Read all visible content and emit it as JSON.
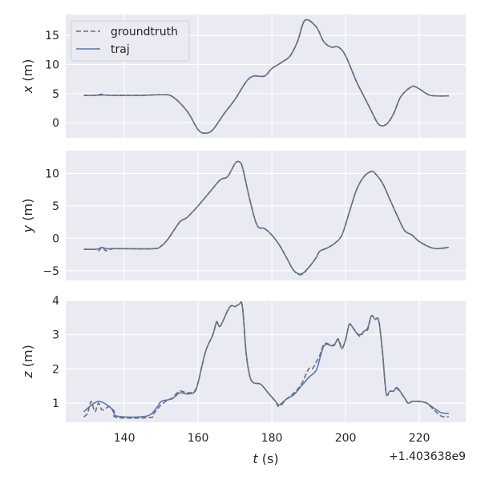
{
  "chart_data": [
    {
      "type": "line",
      "ylabel": "x (m)",
      "ylim": [
        -2.6,
        18.6
      ],
      "xlim": [
        124.1,
        232.6
      ],
      "yticks": [
        0,
        5,
        10,
        15
      ],
      "grid": true,
      "legend": {
        "placement": "top-left",
        "entries": [
          "groundtruth",
          "traj"
        ]
      },
      "series": [
        {
          "name": "groundtruth",
          "style": "dashed",
          "color": "#6e6e6e",
          "t": [
            129,
            132,
            134,
            136,
            140,
            145,
            150,
            153,
            157,
            160,
            162,
            164,
            167,
            170,
            173,
            175,
            178,
            180,
            183,
            185,
            187,
            189,
            192,
            194,
            196,
            198,
            200,
            203,
            205,
            207,
            209,
            211,
            213,
            215,
            218,
            220,
            223,
            228
          ],
          "values": [
            4.7,
            4.7,
            4.9,
            4.7,
            4.7,
            4.7,
            4.8,
            4.5,
            2,
            -1.2,
            -1.8,
            -1.2,
            1.5,
            4,
            7,
            8,
            8,
            9.3,
            10.5,
            11.5,
            14,
            17.6,
            16.5,
            14,
            13,
            13,
            11.5,
            7,
            4.5,
            2,
            -0.3,
            -0.3,
            1.5,
            4.5,
            6.2,
            5.8,
            4.7,
            4.6
          ]
        },
        {
          "name": "traj",
          "style": "solid",
          "color": "#5875b3",
          "t": [
            129,
            132,
            134,
            136,
            140,
            145,
            150,
            153,
            157,
            160,
            162,
            164,
            167,
            170,
            173,
            175,
            178,
            180,
            183,
            185,
            187,
            189,
            192,
            194,
            196,
            198,
            200,
            203,
            205,
            207,
            209,
            211,
            213,
            215,
            218,
            220,
            223,
            228
          ],
          "values": [
            4.7,
            4.7,
            4.75,
            4.7,
            4.7,
            4.7,
            4.8,
            4.5,
            2,
            -1.2,
            -1.8,
            -1.2,
            1.5,
            4,
            7,
            8,
            8,
            9.3,
            10.5,
            11.5,
            14,
            17.6,
            16.5,
            14,
            13,
            13,
            11.5,
            7,
            4.5,
            2,
            -0.3,
            -0.3,
            1.5,
            4.5,
            6.2,
            5.8,
            4.7,
            4.6
          ]
        }
      ]
    },
    {
      "type": "line",
      "ylabel": "y (m)",
      "ylim": [
        -6.5,
        13.5
      ],
      "xlim": [
        124.1,
        232.6
      ],
      "yticks": [
        -5,
        0,
        5,
        10
      ],
      "grid": true,
      "series": [
        {
          "name": "groundtruth",
          "style": "dashed",
          "color": "#6e6e6e",
          "t": [
            129,
            132,
            133,
            134,
            135,
            137,
            140,
            148,
            150,
            152,
            155,
            157,
            160,
            163,
            166,
            168,
            170,
            171,
            172,
            174,
            176,
            178,
            180,
            182,
            184,
            186,
            188,
            190,
            192,
            193,
            195,
            197,
            199,
            201,
            203,
            205,
            207,
            208,
            210,
            212,
            214,
            216,
            218,
            220,
            223,
            225,
            228
          ],
          "values": [
            -1.7,
            -1.7,
            -1.9,
            -1.4,
            -1.9,
            -1.6,
            -1.6,
            -1.6,
            -1.2,
            0,
            2.5,
            3.2,
            5,
            7,
            9,
            9.5,
            11.5,
            11.8,
            11,
            6,
            2,
            1.5,
            0.5,
            -1,
            -3,
            -5,
            -5.6,
            -4.5,
            -3,
            -2,
            -1.5,
            -0.8,
            0.5,
            4,
            7.5,
            9.5,
            10.3,
            10,
            8.5,
            6,
            3.5,
            1.2,
            0.5,
            -0.5,
            -1.4,
            -1.6,
            -1.4
          ]
        },
        {
          "name": "traj",
          "style": "solid",
          "color": "#5875b3",
          "t": [
            129,
            132,
            133,
            134,
            135,
            137,
            140,
            148,
            150,
            152,
            155,
            157,
            160,
            163,
            166,
            168,
            170,
            171,
            172,
            174,
            176,
            178,
            180,
            182,
            184,
            186,
            188,
            190,
            192,
            193,
            195,
            197,
            199,
            201,
            203,
            205,
            207,
            208,
            210,
            212,
            214,
            216,
            218,
            220,
            223,
            225,
            228
          ],
          "values": [
            -1.7,
            -1.7,
            -1.6,
            -1.4,
            -1.6,
            -1.6,
            -1.6,
            -1.6,
            -1.2,
            0,
            2.5,
            3.2,
            5,
            7,
            9,
            9.5,
            11.5,
            11.8,
            11,
            6,
            2,
            1.5,
            0.5,
            -1,
            -3,
            -5,
            -5.5,
            -4.5,
            -3,
            -2,
            -1.5,
            -0.8,
            0.5,
            4,
            7.5,
            9.5,
            10.3,
            10,
            8.5,
            6,
            3.5,
            1.2,
            0.5,
            -0.5,
            -1.4,
            -1.6,
            -1.4
          ]
        }
      ]
    },
    {
      "type": "line",
      "ylabel": "z (m)",
      "xlabel": "t (s)",
      "offset_text": "+1.403638e9",
      "ylim": [
        0.44,
        4.0
      ],
      "xlim": [
        124.1,
        232.6
      ],
      "yticks": [
        1,
        2,
        3,
        4
      ],
      "xticks": [
        140,
        160,
        180,
        200,
        220
      ],
      "grid": true,
      "series": [
        {
          "name": "groundtruth",
          "style": "dashed",
          "color": "#6e6e6e",
          "t": [
            129,
            130,
            131,
            132,
            133,
            134,
            136,
            137,
            138,
            147,
            148,
            150,
            152,
            153,
            155,
            157,
            159,
            160,
            162,
            164,
            165,
            166,
            168,
            169,
            170,
            171,
            172,
            173,
            174,
            175,
            177,
            179,
            181,
            182,
            184,
            186,
            188,
            190,
            191,
            192,
            193,
            194,
            195,
            196,
            197,
            198,
            199,
            200,
            201,
            202,
            203,
            204,
            205,
            206,
            207,
            208,
            209,
            210,
            211,
            212,
            213,
            214,
            216,
            217,
            218,
            220,
            222,
            224,
            226,
            228
          ],
          "values": [
            0.6,
            0.7,
            1.05,
            0.75,
            1.0,
            0.8,
            0.9,
            0.75,
            0.58,
            0.58,
            0.7,
            0.95,
            1.1,
            1.15,
            1.35,
            1.3,
            1.35,
            1.6,
            2.5,
            3.0,
            3.38,
            3.25,
            3.7,
            3.85,
            3.82,
            3.88,
            3.85,
            2.5,
            1.8,
            1.6,
            1.55,
            1.3,
            1.05,
            0.9,
            1.12,
            1.3,
            1.55,
            2.0,
            2.0,
            2.2,
            2.4,
            2.7,
            2.75,
            2.68,
            2.7,
            2.88,
            2.62,
            2.85,
            3.3,
            3.2,
            3.05,
            2.95,
            3.1,
            3.15,
            3.55,
            3.45,
            3.42,
            2.5,
            1.3,
            1.35,
            1.35,
            1.42,
            1.15,
            0.98,
            1.05,
            1.05,
            1.0,
            0.8,
            0.62,
            0.6
          ]
        },
        {
          "name": "traj",
          "style": "solid",
          "color": "#5875b3",
          "t": [
            129,
            133,
            137,
            138,
            146,
            149,
            150,
            153,
            155,
            157,
            159,
            160,
            162,
            164,
            165,
            166,
            168,
            169,
            170,
            171,
            172,
            173,
            174,
            175,
            177,
            179,
            181,
            182,
            184,
            186,
            188,
            190,
            192,
            193,
            194,
            195,
            196,
            197,
            198,
            199,
            200,
            201,
            202,
            203,
            204,
            205,
            206,
            207,
            208,
            209,
            210,
            211,
            212,
            213,
            214,
            216,
            217,
            218,
            220,
            222,
            224,
            226,
            228
          ],
          "values": [
            0.75,
            1.05,
            0.8,
            0.62,
            0.62,
            0.9,
            1.05,
            1.13,
            1.3,
            1.27,
            1.32,
            1.6,
            2.5,
            3.0,
            3.35,
            3.25,
            3.7,
            3.85,
            3.82,
            3.88,
            3.82,
            2.5,
            1.8,
            1.6,
            1.55,
            1.3,
            1.05,
            0.95,
            1.12,
            1.25,
            1.5,
            1.75,
            1.95,
            2.3,
            2.65,
            2.72,
            2.68,
            2.72,
            2.85,
            2.6,
            2.85,
            3.3,
            3.2,
            3.05,
            3.0,
            3.1,
            3.2,
            3.55,
            3.45,
            3.4,
            2.5,
            1.3,
            1.35,
            1.35,
            1.45,
            1.15,
            1.0,
            1.05,
            1.05,
            1.0,
            0.85,
            0.72,
            0.7
          ]
        }
      ]
    }
  ],
  "colors": {
    "axes_bg": "#eaeaf2",
    "grid": "#ffffff",
    "traj": "#5875b3",
    "groundtruth": "#6e6e6e"
  }
}
